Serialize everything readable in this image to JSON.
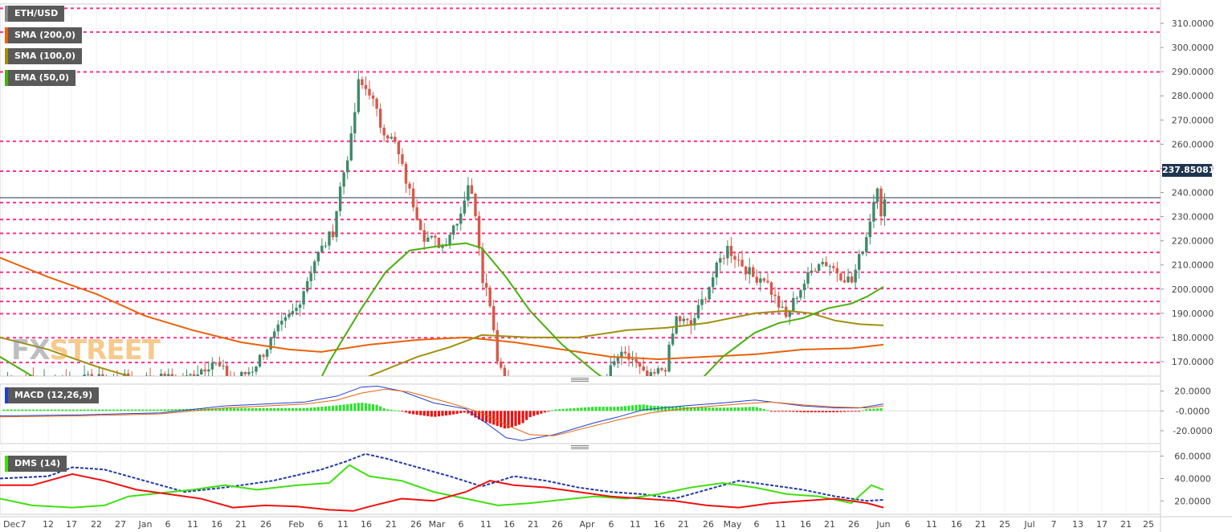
{
  "chart_data": [
    {
      "type": "candlestick",
      "title": "ETH/USD",
      "current_price_label": "237.85081",
      "y_ticks": [
        "310.0000",
        "300.0000",
        "290.0000",
        "280.0000",
        "270.0000",
        "260.0000",
        "250.0000",
        "240.0000",
        "230.0000",
        "220.0000",
        "210.0000",
        "200.0000",
        "190.0000",
        "180.0000",
        "170.0000"
      ],
      "x_ticks": [
        "Dec",
        "7",
        "12",
        "17",
        "22",
        "27",
        "Jan",
        "6",
        "11",
        "16",
        "21",
        "26",
        "Feb",
        "6",
        "11",
        "16",
        "21",
        "26",
        "Mar",
        "6",
        "11",
        "16",
        "21",
        "26",
        "Apr",
        "6",
        "11",
        "16",
        "21",
        "26",
        "May",
        "6",
        "11",
        "16",
        "21",
        "26",
        "Jun",
        "6",
        "11",
        "16",
        "21",
        "25",
        "Jul",
        "7",
        "13",
        "17",
        "21",
        "25"
      ],
      "indicators": [
        {
          "name": "SMA (200,0)",
          "color": "#e8620c"
        },
        {
          "name": "SMA (100,0)",
          "color": "#a09010"
        },
        {
          "name": "EMA (50,0)",
          "color": "#4caf10"
        }
      ],
      "support_resistance_levels": [
        316.2,
        306.4,
        289.9,
        261.2,
        248.8,
        235.8,
        228.8,
        223.1,
        215.2,
        207.0,
        200.2,
        194.9,
        189.8,
        179.9,
        169.6
      ],
      "current_price": 237.85,
      "ylim": [
        164,
        318
      ],
      "up_color": "#3e8a6a",
      "down_color": "#d7584a",
      "level_color": "#ff2d8c"
    },
    {
      "type": "line",
      "title": "MACD (12,26,9)",
      "y_ticks": [
        "20.0000",
        "-0.0000",
        "-20.0000"
      ],
      "ylim": [
        -33,
        27
      ],
      "series_colors": {
        "macd": "#2040d0",
        "signal": "#e8620c",
        "hist_pos": "#30e030",
        "hist_neg": "#ee1111"
      }
    },
    {
      "type": "line",
      "title": "DMS (14)",
      "y_ticks": [
        "60.0000",
        "40.0000",
        "20.0000"
      ],
      "ylim": [
        8,
        64
      ],
      "series_colors": {
        "adx": "#203aa8",
        "plus_di": "#40e010",
        "minus_di": "#ee1111"
      }
    }
  ]
}
